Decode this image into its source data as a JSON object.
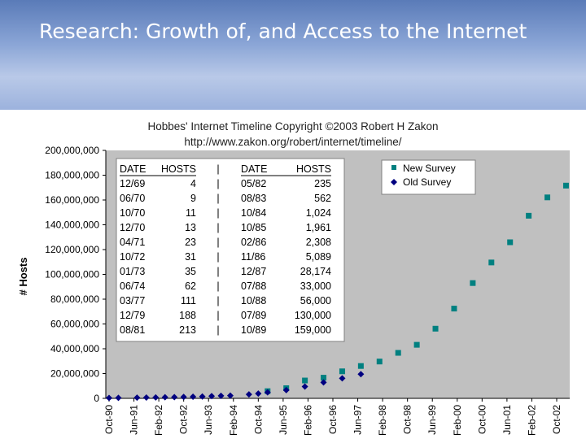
{
  "slide": {
    "title": "Research:  Growth of, and Access to the Internet"
  },
  "chart_data": {
    "type": "scatter",
    "title": "Hobbes' Internet Timeline Copyright ©2003 Robert H Zakon",
    "subtitle": "http://www.zakon.org/robert/internet/timeline/",
    "xlabel": "",
    "ylabel": "# Hosts",
    "ylim": [
      0,
      200000000
    ],
    "y_ticks": [
      "0",
      "20,000,000",
      "40,000,000",
      "60,000,000",
      "80,000,000",
      "100,000,000",
      "120,000,000",
      "140,000,000",
      "160,000,000",
      "180,000,000",
      "200,000,000"
    ],
    "x_ticks": [
      "Oct-90",
      "Jun-91",
      "Feb-92",
      "Oct-92",
      "Jun-93",
      "Feb-94",
      "Oct-94",
      "Jun-95",
      "Feb-96",
      "Oct-96",
      "Jun-97",
      "Feb-98",
      "Oct-98",
      "Jun-99",
      "Feb-00",
      "Oct-00",
      "Jun-01",
      "Feb-02",
      "Oct-02"
    ],
    "grid": false,
    "legend_position": "top-right",
    "plot_background": "#c0c0c0",
    "series": [
      {
        "name": "New Survey",
        "marker": "square",
        "color": "#008080",
        "points": [
          {
            "x": "1995-01",
            "y": 5800000
          },
          {
            "x": "1995-07",
            "y": 8200000
          },
          {
            "x": "1996-01",
            "y": 14400000
          },
          {
            "x": "1996-07",
            "y": 16700000
          },
          {
            "x": "1997-01",
            "y": 21800000
          },
          {
            "x": "1997-07",
            "y": 26100000
          },
          {
            "x": "1998-01",
            "y": 29700000
          },
          {
            "x": "1998-07",
            "y": 36700000
          },
          {
            "x": "1999-01",
            "y": 43200000
          },
          {
            "x": "1999-07",
            "y": 56200000
          },
          {
            "x": "2000-01",
            "y": 72400000
          },
          {
            "x": "2000-07",
            "y": 93000000
          },
          {
            "x": "2001-01",
            "y": 109600000
          },
          {
            "x": "2001-07",
            "y": 125900000
          },
          {
            "x": "2002-01",
            "y": 147300000
          },
          {
            "x": "2002-07",
            "y": 162100000
          },
          {
            "x": "2003-01",
            "y": 171600000
          }
        ]
      },
      {
        "name": "Old Survey",
        "marker": "diamond",
        "color": "#000080",
        "points": [
          {
            "x": "1990-10",
            "y": 313000
          },
          {
            "x": "1991-01",
            "y": 376000
          },
          {
            "x": "1991-07",
            "y": 535000
          },
          {
            "x": "1991-10",
            "y": 617000
          },
          {
            "x": "1992-01",
            "y": 727000
          },
          {
            "x": "1992-04",
            "y": 890000
          },
          {
            "x": "1992-07",
            "y": 992000
          },
          {
            "x": "1992-10",
            "y": 1136000
          },
          {
            "x": "1993-01",
            "y": 1313000
          },
          {
            "x": "1993-04",
            "y": 1486000
          },
          {
            "x": "1993-07",
            "y": 1776000
          },
          {
            "x": "1993-10",
            "y": 2056000
          },
          {
            "x": "1994-01",
            "y": 2217000
          },
          {
            "x": "1994-07",
            "y": 3212000
          },
          {
            "x": "1994-10",
            "y": 3864000
          },
          {
            "x": "1995-01",
            "y": 4852000
          },
          {
            "x": "1995-07",
            "y": 6642000
          },
          {
            "x": "1996-01",
            "y": 9472000
          },
          {
            "x": "1996-07",
            "y": 12881000
          },
          {
            "x": "1997-01",
            "y": 16146000
          },
          {
            "x": "1997-07",
            "y": 19540000
          }
        ]
      }
    ],
    "table": {
      "headers": [
        "DATE",
        "HOSTS",
        "|",
        "DATE",
        "HOSTS"
      ],
      "rows": [
        [
          "12/69",
          "4",
          "|",
          "05/82",
          "235"
        ],
        [
          "06/70",
          "9",
          "|",
          "08/83",
          "562"
        ],
        [
          "10/70",
          "11",
          "|",
          "10/84",
          "1,024"
        ],
        [
          "12/70",
          "13",
          "|",
          "10/85",
          "1,961"
        ],
        [
          "04/71",
          "23",
          "|",
          "02/86",
          "2,308"
        ],
        [
          "10/72",
          "31",
          "|",
          "11/86",
          "5,089"
        ],
        [
          "01/73",
          "35",
          "|",
          "12/87",
          "28,174"
        ],
        [
          "06/74",
          "62",
          "|",
          "07/88",
          "33,000"
        ],
        [
          "03/77",
          "111",
          "|",
          "10/88",
          "56,000"
        ],
        [
          "12/79",
          "188",
          "|",
          "07/89",
          "130,000"
        ],
        [
          "08/81",
          "213",
          "|",
          "10/89",
          "159,000"
        ]
      ]
    }
  }
}
